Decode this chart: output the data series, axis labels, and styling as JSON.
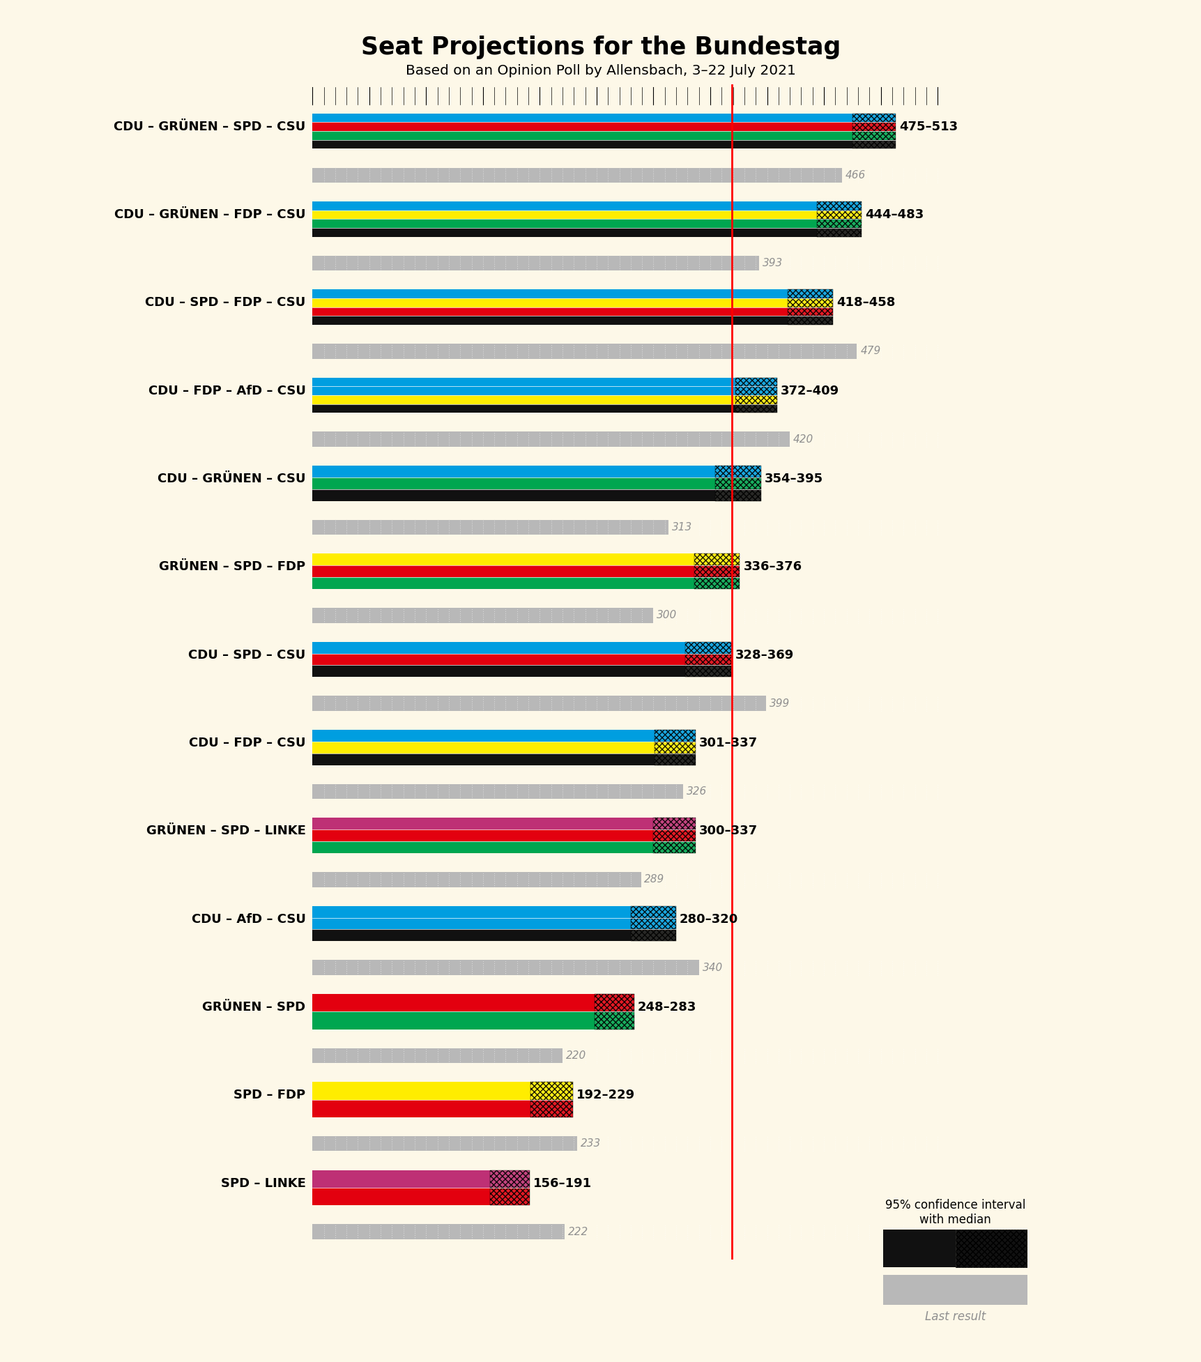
{
  "title": "Seat Projections for the Bundestag",
  "subtitle": "Based on an Opinion Poll by Allensbach, 3–22 July 2021",
  "bg": "#fdf8e8",
  "majority": 369,
  "x_max": 555,
  "coalitions": [
    {
      "label": "CDU – GRÜNEN – SPD – CSU",
      "colors": [
        "#111111",
        "#00a650",
        "#e3000f",
        "#009ee0"
      ],
      "ci_low": 475,
      "ci_high": 513,
      "last": 466,
      "ul": false
    },
    {
      "label": "CDU – GRÜNEN – FDP – CSU",
      "colors": [
        "#111111",
        "#00a650",
        "#ffed00",
        "#009ee0"
      ],
      "ci_low": 444,
      "ci_high": 483,
      "last": 393,
      "ul": false
    },
    {
      "label": "CDU – SPD – FDP – CSU",
      "colors": [
        "#111111",
        "#e3000f",
        "#ffed00",
        "#009ee0"
      ],
      "ci_low": 418,
      "ci_high": 458,
      "last": 479,
      "ul": false
    },
    {
      "label": "CDU – FDP – AfD – CSU",
      "colors": [
        "#111111",
        "#ffed00",
        "#009ee0",
        "#009ee0"
      ],
      "ci_low": 372,
      "ci_high": 409,
      "last": 420,
      "ul": false
    },
    {
      "label": "CDU – GRÜNEN – CSU",
      "colors": [
        "#111111",
        "#00a650",
        "#009ee0"
      ],
      "ci_low": 354,
      "ci_high": 395,
      "last": 313,
      "ul": false
    },
    {
      "label": "GRÜNEN – SPD – FDP",
      "colors": [
        "#00a650",
        "#e3000f",
        "#ffed00"
      ],
      "ci_low": 336,
      "ci_high": 376,
      "last": 300,
      "ul": false
    },
    {
      "label": "CDU – SPD – CSU",
      "colors": [
        "#111111",
        "#e3000f",
        "#009ee0"
      ],
      "ci_low": 328,
      "ci_high": 369,
      "last": 399,
      "ul": true
    },
    {
      "label": "CDU – FDP – CSU",
      "colors": [
        "#111111",
        "#ffed00",
        "#009ee0"
      ],
      "ci_low": 301,
      "ci_high": 337,
      "last": 326,
      "ul": false
    },
    {
      "label": "GRÜNEN – SPD – LINKE",
      "colors": [
        "#00a650",
        "#e3000f",
        "#be3075"
      ],
      "ci_low": 300,
      "ci_high": 337,
      "last": 289,
      "ul": false
    },
    {
      "label": "CDU – AfD – CSU",
      "colors": [
        "#111111",
        "#009ee0",
        "#009ee0"
      ],
      "ci_low": 280,
      "ci_high": 320,
      "last": 340,
      "ul": false
    },
    {
      "label": "GRÜNEN – SPD",
      "colors": [
        "#00a650",
        "#e3000f"
      ],
      "ci_low": 248,
      "ci_high": 283,
      "last": 220,
      "ul": false
    },
    {
      "label": "SPD – FDP",
      "colors": [
        "#e3000f",
        "#ffed00"
      ],
      "ci_low": 192,
      "ci_high": 229,
      "last": 233,
      "ul": false
    },
    {
      "label": "SPD – LINKE",
      "colors": [
        "#e3000f",
        "#be3075"
      ],
      "ci_low": 156,
      "ci_high": 191,
      "last": 222,
      "ul": false
    }
  ]
}
